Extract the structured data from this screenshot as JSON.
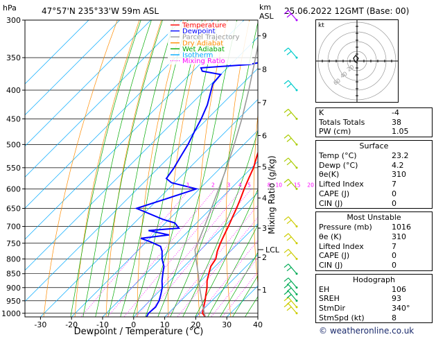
{
  "header": {
    "pressure_unit": "hPa",
    "location": "47°57'N  235°33'W  59m  ASL",
    "km_label": "km",
    "asl_label": "ASL",
    "datetime": "25.06.2022  12GMT  (Base: 00)"
  },
  "legend": [
    {
      "label": "Temperature",
      "color": "#ff0000",
      "style": "solid"
    },
    {
      "label": "Dewpoint",
      "color": "#0000ff",
      "style": "solid"
    },
    {
      "label": "Parcel Trajectory",
      "color": "#999999",
      "style": "solid"
    },
    {
      "label": "Dry Adiabat",
      "color": "#ff8c00",
      "style": "solid"
    },
    {
      "label": "Wet Adiabat",
      "color": "#00aa00",
      "style": "solid"
    },
    {
      "label": "Isotherm",
      "color": "#00aaff",
      "style": "solid"
    },
    {
      "label": "Mixing Ratio",
      "color": "#ff00ff",
      "style": "dotted"
    }
  ],
  "chart_data": {
    "type": "line",
    "diagram": "skew-t log-p",
    "xlabel": "Dewpoint / Temperature (°C)",
    "y_left_label": "hPa",
    "y_right_label": "Mixing Ratio (g/kg)",
    "x_ticks": [
      -30,
      -20,
      -10,
      0,
      10,
      20,
      30,
      40
    ],
    "xlim": [
      -35,
      40
    ],
    "p_ticks": [
      300,
      350,
      400,
      450,
      500,
      550,
      600,
      650,
      700,
      750,
      800,
      850,
      900,
      950,
      1000
    ],
    "plim": [
      300,
      1015
    ],
    "log_p": true,
    "grid": true,
    "km_ticks": [
      {
        "km": 1,
        "p": 908
      },
      {
        "km": 2,
        "p": 795
      },
      {
        "km": 3,
        "p": 705
      },
      {
        "km": 4,
        "p": 623
      },
      {
        "km": 5,
        "p": 548
      },
      {
        "km": 6,
        "p": 482
      },
      {
        "km": 7,
        "p": 421
      },
      {
        "km": 8,
        "p": 367
      },
      {
        "km": 9,
        "p": 320
      }
    ],
    "lcl": {
      "label": "LCL",
      "p": 770
    },
    "mixing_ratio_labels": [
      "1",
      "2",
      "3",
      "4",
      "5",
      "8",
      "10",
      "15",
      "20",
      "25"
    ],
    "series": [
      {
        "name": "Temperature",
        "color": "#ff0000",
        "p": [
          1016,
          1000,
          975,
          950,
          925,
          900,
          875,
          850,
          825,
          800,
          775,
          750,
          725,
          700,
          675,
          650,
          625,
          600,
          575,
          550,
          525,
          500,
          475,
          450,
          425,
          400,
          375,
          350,
          325,
          300
        ],
        "t": [
          23.2,
          21.0,
          19.4,
          17.8,
          16.0,
          14.2,
          12.0,
          10.3,
          8.6,
          7.8,
          5.8,
          4.2,
          2.8,
          1.4,
          -0.2,
          -1.8,
          -3.6,
          -5.6,
          -7.5,
          -9.4,
          -12.0,
          -14.6,
          -17.4,
          -20.2,
          -23.0,
          -25.3,
          -28.6,
          -31.2,
          -35.6,
          -40.0
        ]
      },
      {
        "name": "Dewpoint",
        "color": "#0000ff",
        "p": [
          1016,
          1000,
          975,
          950,
          925,
          900,
          875,
          850,
          825,
          800,
          775,
          760,
          745,
          735,
          725,
          712,
          705,
          690,
          680,
          650,
          625,
          600,
          585,
          575,
          550,
          525,
          500,
          475,
          450,
          425,
          400,
          390,
          375,
          370,
          365,
          360,
          350,
          335,
          320,
          300
        ],
        "t": [
          4.2,
          3.6,
          3.9,
          3.0,
          1.5,
          -0.2,
          -2.5,
          -4.5,
          -6.5,
          -9.5,
          -12.0,
          -14.0,
          -19.0,
          -23.0,
          -15.0,
          -23.0,
          -14.0,
          -17.0,
          -22.0,
          -34.0,
          -27.5,
          -21.0,
          -31.0,
          -34.0,
          -35.0,
          -36.5,
          -38.0,
          -40.0,
          -42.0,
          -44.5,
          -48.0,
          -49.5,
          -50.0,
          -57.0,
          -58.5,
          -44.0,
          -35.0,
          -41.0,
          -46.0,
          -49.0
        ]
      },
      {
        "name": "Parcel Trajectory",
        "color": "#999999",
        "p": [
          1016,
          1000,
          950,
          900,
          850,
          800,
          770,
          750,
          700,
          650,
          600,
          550,
          500,
          450,
          400,
          350,
          300
        ],
        "t": [
          23.2,
          21.6,
          16.8,
          11.8,
          6.9,
          1.4,
          -1.9,
          -3.1,
          -6.3,
          -9.9,
          -13.8,
          -18.1,
          -23.1,
          -28.9,
          -35.9,
          -44.2,
          -53.9
        ]
      }
    ],
    "wind_barbs": [
      {
        "p": 1000,
        "color": "#cccc00"
      },
      {
        "p": 975,
        "color": "#cccc00"
      },
      {
        "p": 950,
        "color": "#00aa55"
      },
      {
        "p": 925,
        "color": "#00aa55"
      },
      {
        "p": 900,
        "color": "#00aa55"
      },
      {
        "p": 850,
        "color": "#00aa55"
      },
      {
        "p": 800,
        "color": "#cccc00"
      },
      {
        "p": 750,
        "color": "#cccc00"
      },
      {
        "p": 700,
        "color": "#cccc00"
      },
      {
        "p": 600,
        "color": "#aacc00"
      },
      {
        "p": 550,
        "color": "#aacc00"
      },
      {
        "p": 500,
        "color": "#aacc00"
      },
      {
        "p": 450,
        "color": "#aacc00"
      },
      {
        "p": 400,
        "color": "#00cccc"
      },
      {
        "p": 350,
        "color": "#00cccc"
      },
      {
        "p": 300,
        "color": "#aa00ff"
      }
    ]
  },
  "hodograph": {
    "unit": "kt",
    "ring_labels": [
      "20",
      "40",
      "60"
    ],
    "trace_color": "#000000"
  },
  "stats": {
    "indices": [
      {
        "key": "K",
        "value": "-4"
      },
      {
        "key": "Totals Totals",
        "value": "38"
      },
      {
        "key": "PW (cm)",
        "value": "1.05"
      }
    ],
    "surface": {
      "title": "Surface",
      "rows": [
        {
          "key": "Temp (°C)",
          "value": "23.2"
        },
        {
          "key": "Dewp (°C)",
          "value": "4.2"
        },
        {
          "key": "θe(K)",
          "value": "310"
        },
        {
          "key": "Lifted Index",
          "value": "7"
        },
        {
          "key": "CAPE (J)",
          "value": "0"
        },
        {
          "key": "CIN (J)",
          "value": "0"
        }
      ]
    },
    "most_unstable": {
      "title": "Most Unstable",
      "rows": [
        {
          "key": "Pressure (mb)",
          "value": "1016"
        },
        {
          "key": "θe (K)",
          "value": "310"
        },
        {
          "key": "Lifted Index",
          "value": "7"
        },
        {
          "key": "CAPE (J)",
          "value": "0"
        },
        {
          "key": "CIN (J)",
          "value": "0"
        }
      ]
    },
    "hodograph": {
      "title": "Hodograph",
      "rows": [
        {
          "key": "EH",
          "value": "106"
        },
        {
          "key": "SREH",
          "value": "93"
        },
        {
          "key": "StmDir",
          "value": "340°"
        },
        {
          "key": "StmSpd (kt)",
          "value": "8"
        }
      ]
    }
  },
  "credit": "© weatheronline.co.uk"
}
